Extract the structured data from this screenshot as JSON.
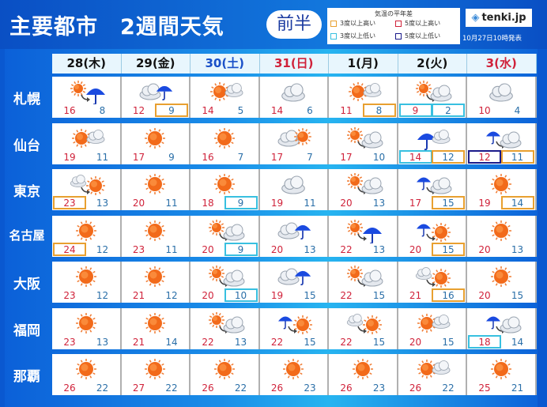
{
  "header": {
    "title": "主要都市　2週間天気",
    "half": "前半",
    "logo": "tenki.jp",
    "issued": "10月27日10時発表"
  },
  "legend": {
    "title": "気温の平年差",
    "items": [
      {
        "label": "3度以上高い",
        "color": "#e8a030",
        "code": "hi3"
      },
      {
        "label": "5度以上高い",
        "color": "#d0223a",
        "code": "hi5"
      },
      {
        "label": "3度以上低い",
        "color": "#38c0e0",
        "code": "lo3"
      },
      {
        "label": "5度以上低い",
        "color": "#1a1a8a",
        "code": "lo5"
      }
    ]
  },
  "colors": {
    "weekday": "#111111",
    "saturday": "#1a50c8",
    "holiday": "#d0223a",
    "high": "#d0223a",
    "low": "#2a6fa8"
  },
  "days": [
    {
      "label": "28(木)",
      "type": "weekday"
    },
    {
      "label": "29(金)",
      "type": "weekday"
    },
    {
      "label": "30(土)",
      "type": "saturday"
    },
    {
      "label": "31(日)",
      "type": "holiday"
    },
    {
      "label": "1(月)",
      "type": "weekday"
    },
    {
      "label": "2(火)",
      "type": "weekday"
    },
    {
      "label": "3(水)",
      "type": "holiday"
    }
  ],
  "cities": [
    {
      "name": "札幌",
      "days": [
        {
          "icon": "sun-then-rain",
          "high": 16,
          "low": 8
        },
        {
          "icon": "cloud-sometimes-rain",
          "high": 12,
          "low": 9,
          "low_anom": "hi3"
        },
        {
          "icon": "sun-sometimes-cloud",
          "high": 14,
          "low": 5
        },
        {
          "icon": "cloud",
          "high": 14,
          "low": 6
        },
        {
          "icon": "sun-sometimes-cloud",
          "high": 11,
          "low": 8,
          "low_anom": "hi3"
        },
        {
          "icon": "sun-then-cloud",
          "high": 9,
          "low": 2,
          "high_anom": "lo3",
          "low_anom": "lo3"
        },
        {
          "icon": "cloud",
          "high": 10,
          "low": 4
        }
      ]
    },
    {
      "name": "仙台",
      "days": [
        {
          "icon": "sun-sometimes-cloud",
          "high": 19,
          "low": 11
        },
        {
          "icon": "sun",
          "high": 17,
          "low": 9
        },
        {
          "icon": "sun",
          "high": 16,
          "low": 7
        },
        {
          "icon": "cloud-sometimes-sun",
          "high": 17,
          "low": 7
        },
        {
          "icon": "sun-then-cloud",
          "high": 17,
          "low": 10
        },
        {
          "icon": "rain-sometimes-cloud",
          "high": 14,
          "low": 12,
          "high_anom": "lo3",
          "low_anom": "hi3"
        },
        {
          "icon": "rain-then-cloud",
          "high": 12,
          "low": 11,
          "high_anom": "lo5",
          "low_anom": "hi3"
        }
      ]
    },
    {
      "name": "東京",
      "days": [
        {
          "icon": "cloud-then-sun",
          "high": 23,
          "low": 13,
          "high_anom": "hi3"
        },
        {
          "icon": "sun",
          "high": 20,
          "low": 11
        },
        {
          "icon": "sun",
          "high": 18,
          "low": 9,
          "low_anom": "lo3"
        },
        {
          "icon": "cloud",
          "high": 19,
          "low": 11
        },
        {
          "icon": "sun-then-cloud",
          "high": 20,
          "low": 13
        },
        {
          "icon": "rain-then-cloud",
          "high": 17,
          "low": 15,
          "low_anom": "hi3"
        },
        {
          "icon": "sun",
          "high": 19,
          "low": 14,
          "low_anom": "hi3"
        }
      ]
    },
    {
      "name": "名古屋",
      "days": [
        {
          "icon": "sun",
          "high": 24,
          "low": 12,
          "high_anom": "hi3"
        },
        {
          "icon": "sun",
          "high": 23,
          "low": 11
        },
        {
          "icon": "sun-then-cloud",
          "high": 20,
          "low": 9,
          "low_anom": "lo3"
        },
        {
          "icon": "cloud-sometimes-rain",
          "high": 20,
          "low": 13
        },
        {
          "icon": "sun-then-rain",
          "high": 22,
          "low": 13
        },
        {
          "icon": "rain-then-sun",
          "high": 20,
          "low": 15,
          "low_anom": "hi3"
        },
        {
          "icon": "sun",
          "high": 20,
          "low": 13
        }
      ]
    },
    {
      "name": "大阪",
      "days": [
        {
          "icon": "sun",
          "high": 23,
          "low": 12
        },
        {
          "icon": "sun",
          "high": 21,
          "low": 12
        },
        {
          "icon": "sun-then-cloud",
          "high": 20,
          "low": 10,
          "low_anom": "lo3"
        },
        {
          "icon": "cloud-sometimes-rain",
          "high": 19,
          "low": 15
        },
        {
          "icon": "sun-then-cloud",
          "high": 22,
          "low": 15
        },
        {
          "icon": "cloud-then-sun",
          "high": 21,
          "low": 16,
          "low_anom": "hi3"
        },
        {
          "icon": "sun",
          "high": 20,
          "low": 15
        }
      ]
    },
    {
      "name": "福岡",
      "days": [
        {
          "icon": "sun",
          "high": 23,
          "low": 13
        },
        {
          "icon": "sun",
          "high": 21,
          "low": 14
        },
        {
          "icon": "sun-then-cloud",
          "high": 22,
          "low": 13
        },
        {
          "icon": "rain-then-sun",
          "high": 22,
          "low": 15
        },
        {
          "icon": "cloud-then-sun",
          "high": 22,
          "low": 15
        },
        {
          "icon": "sun-sometimes-cloud",
          "high": 20,
          "low": 15
        },
        {
          "icon": "rain-then-cloud",
          "high": 18,
          "low": 14,
          "high_anom": "lo3"
        }
      ]
    },
    {
      "name": "那覇",
      "days": [
        {
          "icon": "sun",
          "high": 26,
          "low": 22
        },
        {
          "icon": "sun",
          "high": 27,
          "low": 22
        },
        {
          "icon": "sun",
          "high": 26,
          "low": 22
        },
        {
          "icon": "sun",
          "high": 26,
          "low": 23
        },
        {
          "icon": "sun",
          "high": 26,
          "low": 23
        },
        {
          "icon": "sun-sometimes-cloud",
          "high": 26,
          "low": 22
        },
        {
          "icon": "sun",
          "high": 25,
          "low": 21
        }
      ]
    }
  ]
}
